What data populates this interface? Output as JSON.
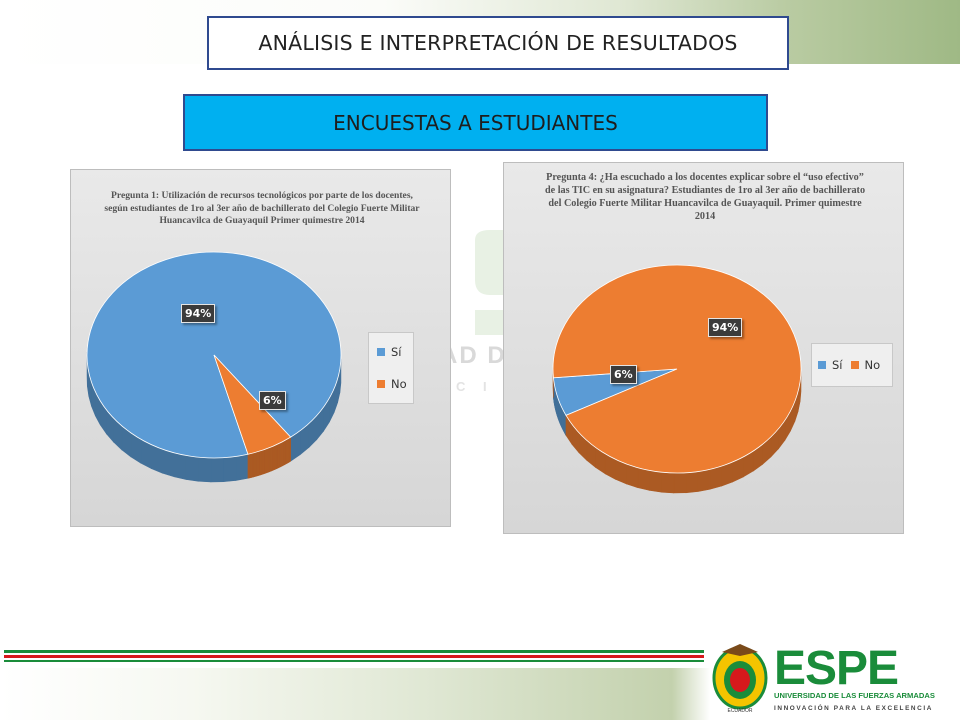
{
  "slide": {
    "title": "ANÁLISIS E INTERPRETACIÓN DE RESULTADOS",
    "subtitle": "ENCUESTAS A ESTUDIANTES"
  },
  "watermark": {
    "line1": "AD D",
    "line2": "C I Ó N"
  },
  "logo": {
    "name": "ESPE",
    "line1": "UNIVERSIDAD DE LAS FUERZAS ARMADAS",
    "line2": "INNOVACIÓN PARA LA EXCELENCIA",
    "seal_text": "ECUADOR"
  },
  "colors": {
    "si": "#5b9bd5",
    "no": "#ed7d31",
    "accent_box": "#00b0f0",
    "border": "#2f4a8f"
  },
  "chart_data": [
    {
      "type": "pie",
      "title": "Pregunta 1: Utilización de recursos tecnológicos por parte de los docentes, según estudiantes de 1ro al 3er año de bachillerato del Colegio Fuerte Militar Huancavilca de Guayaquil Primer quimestre 2014",
      "series": [
        {
          "values": [
            94,
            6
          ]
        }
      ],
      "categories": [
        "Sí",
        "No"
      ],
      "data_labels": [
        "94%",
        "6%"
      ],
      "legend_position": "right"
    },
    {
      "type": "pie",
      "title": "Pregunta 4: ¿Ha escuchado a los docentes explicar sobre el “uso efectivo” de las TIC en su asignatura? Estudiantes de 1ro al 3er año de bachillerato del Colegio Fuerte Militar Huancavilca de Guayaquil. Primer quimestre 2014",
      "series": [
        {
          "values": [
            6,
            94
          ]
        }
      ],
      "categories": [
        "Sí",
        "No"
      ],
      "data_labels": [
        "6%",
        "94%"
      ],
      "legend_position": "right"
    }
  ]
}
